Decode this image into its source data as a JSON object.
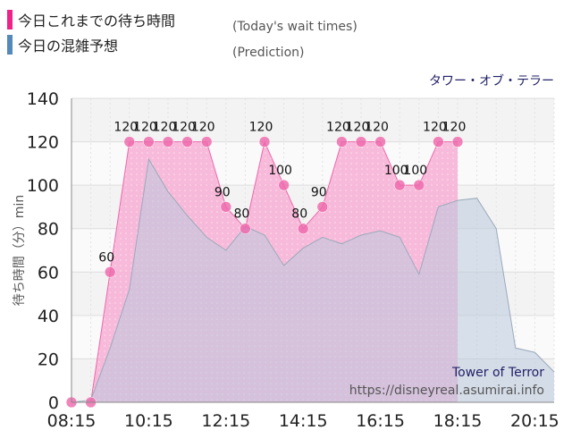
{
  "legend": {
    "actual_label": "今日これまでの待ち時間",
    "actual_en": "(Today's wait times)",
    "actual_color": "#ee2288",
    "prediction_label": "今日の混雑予想",
    "prediction_en": "(Prediction)",
    "prediction_color": "#5588bb"
  },
  "attraction_name": "タワー・オブ・テラー",
  "credit": {
    "name": "Tower of Terror",
    "url": "https://disneyreal.asumirai.info"
  },
  "chart_data": {
    "type": "area",
    "ylabel": "待ち時間（分）min",
    "ylim": [
      0,
      140
    ],
    "yticks": [
      0,
      20,
      40,
      60,
      80,
      100,
      120,
      140
    ],
    "xlim": [
      "08:15",
      "20:45"
    ],
    "xticks": [
      "08:15",
      "10:15",
      "12:15",
      "14:15",
      "16:15",
      "18:15",
      "20:15"
    ],
    "grid": true,
    "series": [
      {
        "name": "今日これまでの待ち時間",
        "x": [
          "08:15",
          "08:45",
          "09:15",
          "09:45",
          "10:15",
          "10:45",
          "11:15",
          "11:45",
          "12:15",
          "12:45",
          "13:15",
          "13:45",
          "14:15",
          "14:45",
          "15:15",
          "15:45",
          "16:15",
          "16:45",
          "17:15",
          "17:45",
          "18:15"
        ],
        "values": [
          0,
          0,
          60,
          120,
          120,
          120,
          120,
          120,
          90,
          80,
          120,
          100,
          80,
          90,
          120,
          120,
          120,
          100,
          100,
          120,
          120
        ],
        "data_labels": [
          "",
          "",
          "60",
          "120",
          "120",
          "120",
          "120",
          "120",
          "90",
          "80",
          "120",
          "100",
          "80",
          "90",
          "120",
          "120",
          "120",
          "100",
          "100",
          "120",
          "120"
        ]
      },
      {
        "name": "今日の混雑予想",
        "x": [
          "08:15",
          "08:45",
          "09:15",
          "09:45",
          "10:15",
          "10:45",
          "11:15",
          "11:45",
          "12:15",
          "12:45",
          "13:15",
          "13:45",
          "14:15",
          "14:45",
          "15:15",
          "15:45",
          "16:15",
          "16:45",
          "17:15",
          "17:45",
          "18:15",
          "18:45",
          "19:15",
          "19:45",
          "20:15",
          "20:45"
        ],
        "values": [
          0,
          1,
          25,
          52,
          112,
          97,
          86,
          76,
          70,
          81,
          77,
          63,
          71,
          76,
          73,
          77,
          79,
          76,
          59,
          90,
          93,
          94,
          80,
          25,
          23,
          14
        ]
      }
    ]
  }
}
